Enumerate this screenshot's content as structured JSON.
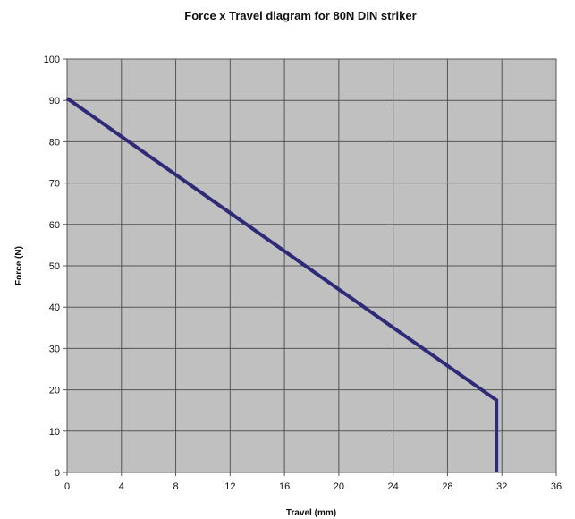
{
  "chart_data": {
    "type": "line",
    "title": "Force x Travel diagram for 80N DIN striker",
    "xlabel": "Travel (mm)",
    "ylabel": "Force (N)",
    "xlim": [
      0,
      36
    ],
    "ylim": [
      0,
      100
    ],
    "x_ticks": [
      "0",
      "4",
      "8",
      "12",
      "16",
      "20",
      "24",
      "28",
      "32",
      "36"
    ],
    "y_ticks": [
      "0",
      "10",
      "20",
      "30",
      "40",
      "50",
      "60",
      "70",
      "80",
      "90",
      "100"
    ],
    "grid": true,
    "legend": "none",
    "colors": {
      "plot_background": "#c0c0c0",
      "grid": "#555555",
      "line": "#2e2a78"
    },
    "series": [
      {
        "x": [
          0,
          31.6,
          31.6
        ],
        "y": [
          90.5,
          17.5,
          0
        ]
      }
    ]
  }
}
